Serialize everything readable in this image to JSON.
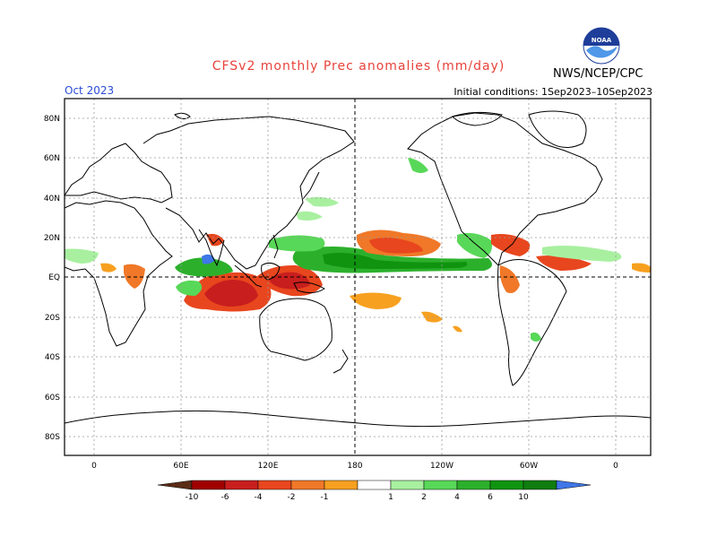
{
  "title": "CFSv2 monthly Prec anomalies (mm/day)",
  "month": "Oct 2023",
  "initial_conditions": "Initial conditions: 1Sep2023–10Sep2023",
  "agency": "NWS/NCEP/CPC",
  "logo_text": "NOAA",
  "lat_labels": [
    "80N",
    "60N",
    "40N",
    "20N",
    "EQ",
    "20S",
    "40S",
    "60S",
    "80S"
  ],
  "lon_labels": [
    "0",
    "60E",
    "120E",
    "180",
    "120W",
    "60W",
    "0"
  ],
  "colorbar": {
    "labels": [
      "-10",
      "-6",
      "-4",
      "-2",
      "-1",
      "1",
      "2",
      "4",
      "6",
      "10"
    ],
    "colors": [
      "#5a2d16",
      "#a00000",
      "#c81e1e",
      "#e8461e",
      "#f07828",
      "#f7a020",
      "#ffffff",
      "#a8f0a0",
      "#58d858",
      "#2cb02c",
      "#109410",
      "#0f7d0f",
      "#3f76e8"
    ]
  },
  "colors": {
    "title": "#e8423a",
    "month": "#2b4bd8"
  }
}
